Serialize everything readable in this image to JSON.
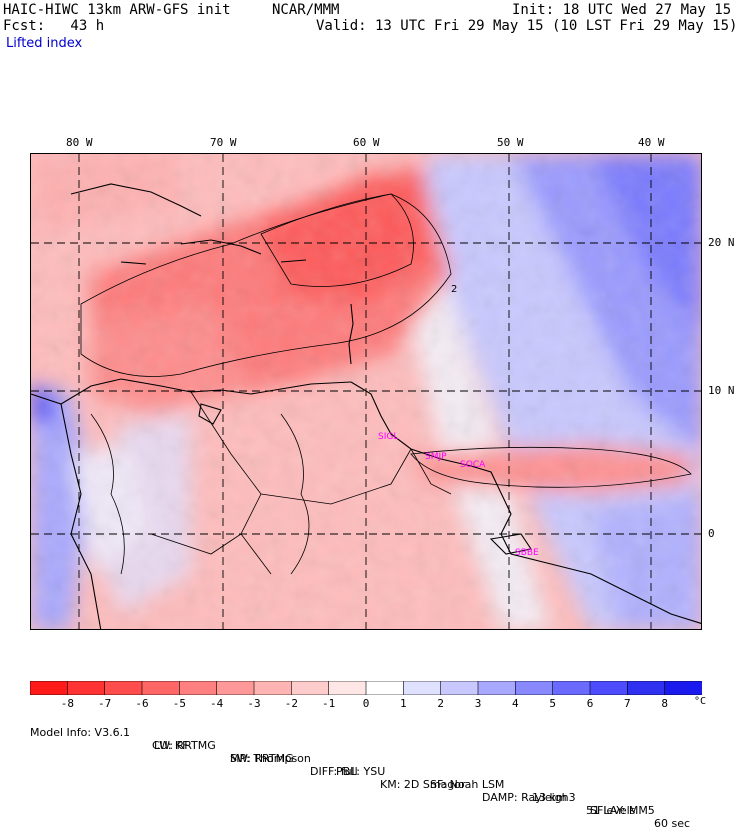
{
  "header": {
    "model_title": "HAIC-HIWC 13km ARW-GFS init",
    "org": "NCAR/MMM",
    "init": "Init: 18 UTC Wed 27 May 15",
    "fcst": "Fcst:   43 h",
    "valid": "Valid: 13 UTC Fri 29 May 15 (10 LST Fri 29 May 15)",
    "field": "Lifted index"
  },
  "map": {
    "lon_labels": [
      "80 W",
      "70 W",
      "60 W",
      "50 W",
      "40 W"
    ],
    "lat_labels": [
      "20 N",
      "10 N",
      "0"
    ],
    "stations": [
      "SIGL",
      "SMJP",
      "SOCA",
      "SBBE"
    ],
    "contour_label": "2"
  },
  "colorbar": {
    "ticks": [
      "-8",
      "-7",
      "-6",
      "-5",
      "-4",
      "-3",
      "-2",
      "-1",
      "0",
      "1",
      "2",
      "3",
      "4",
      "5",
      "6",
      "7",
      "8"
    ],
    "unit": "°C",
    "colors": [
      "#ff1a1a",
      "#ff3333",
      "#ff4d4d",
      "#ff6666",
      "#ff8080",
      "#ff9999",
      "#ffb3b3",
      "#ffcccc",
      "#ffe6e6",
      "#ffffff",
      "#e0e0ff",
      "#c8c8ff",
      "#a8a8ff",
      "#8888ff",
      "#6a6aff",
      "#4d4dff",
      "#3030f0",
      "#1a1aee"
    ]
  },
  "footer": {
    "line1": [
      "Model Info: V3.6.1",
      "CU: KF",
      "MP: Thompson",
      "PBL: YSU",
      "SF: Noah LSM",
      "13 km",
      "51 levels",
      "60 sec"
    ],
    "line2": [
      "LW: RRTMG",
      "SW: RRTMG",
      "DIFF: full",
      "KM: 2D Smagor",
      "DAMP: Rayleigh3",
      "SFLAY: MM5"
    ]
  }
}
